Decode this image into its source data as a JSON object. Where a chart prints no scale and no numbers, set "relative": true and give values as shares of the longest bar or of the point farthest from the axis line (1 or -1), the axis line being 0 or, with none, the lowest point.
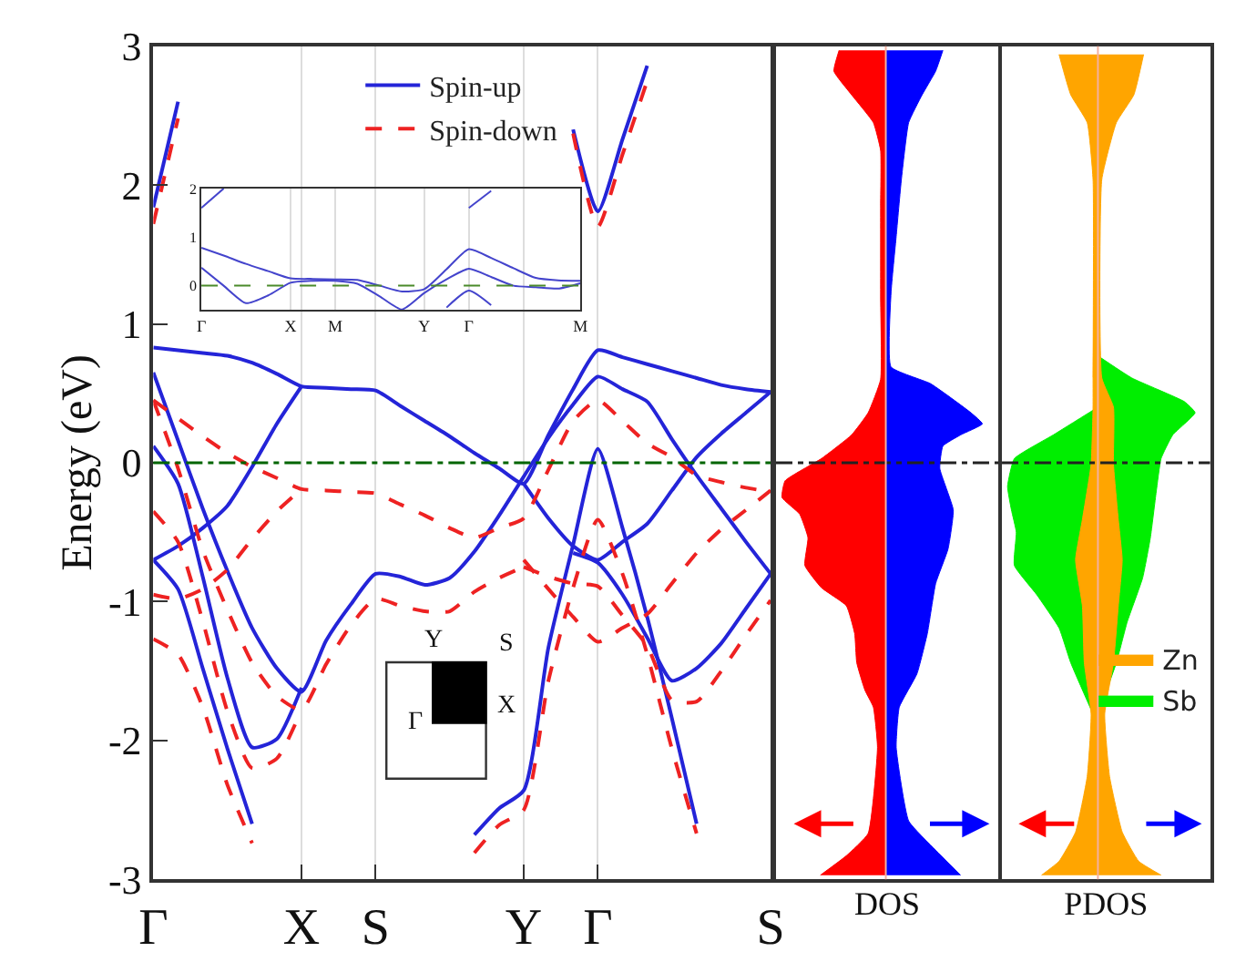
{
  "chart_data": [
    {
      "type": "line",
      "ylabel": "Energy (eV)",
      "ylim": [
        -3,
        3
      ],
      "yticks": [
        -3,
        -2,
        -1,
        0,
        1,
        2,
        3
      ],
      "categories": [
        "Γ",
        null,
        null,
        null,
        null,
        null,
        "X",
        null,
        null,
        "S",
        null,
        null,
        null,
        null,
        null,
        "Y",
        null,
        null,
        "Γ",
        null,
        null,
        null,
        null,
        null,
        null,
        "S"
      ],
      "grid": "x",
      "legend": "top",
      "annotations": [
        "Y",
        "S",
        "Γ",
        "X"
      ],
      "ref_lines": [
        {
          "axis": "y",
          "value": 0,
          "color": "#006400",
          "line_style": "dashdot"
        }
      ],
      "series": [
        {
          "name": "Spin-up",
          "color": "#2424d8",
          "line_style": "solid",
          "values": [
            0.83,
            0.81,
            0.79,
            0.77,
            0.72,
            0.64,
            0.55,
            0.54,
            0.53,
            0.52,
            0.41,
            0.3,
            0.19,
            0.07,
            -0.04,
            -0.15,
            0.2,
            0.53,
            0.81,
            0.76,
            0.71,
            0.66,
            0.61,
            0.56,
            0.53,
            0.51
          ]
        },
        {
          "color": "#2424d8",
          "line_style": "solid",
          "values": [
            1.84,
            2.6,
            null,
            null,
            null,
            null,
            null,
            null,
            null,
            null,
            null,
            null,
            null,
            null,
            null,
            null,
            null,
            null,
            null,
            null,
            null,
            null,
            null,
            null,
            null,
            null
          ]
        },
        {
          "color": "#2424d8",
          "line_style": "solid",
          "values": [
            null,
            null,
            null,
            null,
            null,
            null,
            null,
            null,
            null,
            null,
            null,
            null,
            null,
            null,
            null,
            null,
            null,
            2.4,
            1.81,
            2.33,
            2.86,
            null,
            null,
            null,
            null,
            null
          ]
        },
        {
          "color": "#2424d8",
          "line_style": "solid",
          "values": [
            0.65,
            0.16,
            -0.33,
            -0.78,
            -1.19,
            -1.48,
            -1.65,
            -1.28,
            -1.02,
            -0.8,
            -0.82,
            -0.88,
            -0.83,
            -0.64,
            -0.38,
            -0.1,
            0.18,
            0.42,
            0.62,
            0.53,
            0.44,
            0.17,
            -0.09,
            -0.33,
            -0.57,
            -0.8
          ]
        },
        {
          "color": "#2424d8",
          "line_style": "solid",
          "values": [
            0.12,
            -0.15,
            -0.82,
            -1.55,
            -2.05,
            -1.99,
            -1.62,
            null,
            null,
            null,
            null,
            null,
            null,
            null,
            null,
            null,
            null,
            null,
            null,
            null,
            null,
            null,
            null,
            null,
            null,
            null
          ]
        },
        {
          "color": "#2424d8",
          "line_style": "solid",
          "values": [
            -0.7,
            -0.6,
            -0.47,
            -0.31,
            -0.03,
            0.28,
            0.55,
            null,
            null,
            null,
            null,
            null,
            null,
            null,
            null,
            null,
            null,
            null,
            null,
            null,
            null,
            null,
            null,
            null,
            null,
            null
          ]
        },
        {
          "color": "#2424d8",
          "line_style": "solid",
          "values": [
            -0.7,
            -0.91,
            -1.48,
            -2.06,
            -2.6,
            null,
            null,
            null,
            null,
            null,
            null,
            null,
            null,
            null,
            null,
            null,
            null,
            null,
            null,
            null,
            null,
            null,
            null,
            null,
            null,
            null
          ]
        },
        {
          "color": "#2424d8",
          "line_style": "solid",
          "values": [
            null,
            null,
            null,
            null,
            null,
            null,
            null,
            null,
            null,
            null,
            null,
            null,
            null,
            -2.68,
            -2.49,
            -2.36,
            -1.33,
            -0.59,
            0.1,
            -0.47,
            -1.11,
            -1.84,
            -2.6,
            null,
            null,
            null
          ]
        },
        {
          "color": "#2424d8",
          "line_style": "solid",
          "values": [
            null,
            null,
            null,
            null,
            null,
            null,
            null,
            null,
            null,
            null,
            null,
            null,
            null,
            null,
            null,
            -0.15,
            -0.4,
            -0.6,
            -0.7,
            -0.57,
            -0.44,
            -0.2,
            0.04,
            0.21,
            0.36,
            0.51
          ]
        },
        {
          "color": "#2424d8",
          "line_style": "solid",
          "values": [
            null,
            null,
            null,
            null,
            null,
            null,
            null,
            null,
            null,
            null,
            null,
            null,
            null,
            null,
            null,
            null,
            null,
            -0.65,
            -0.72,
            -0.95,
            -1.26,
            -1.57,
            -1.48,
            -1.3,
            -1.05,
            -0.8
          ]
        },
        {
          "name": "Spin-down",
          "color": "#ee2222",
          "line_style": "dashed",
          "values": [
            0.45,
            0.32,
            0.19,
            0.07,
            -0.03,
            -0.11,
            -0.19,
            -0.2,
            -0.21,
            -0.22,
            -0.3,
            -0.38,
            -0.47,
            -0.54,
            -0.47,
            -0.4,
            -0.05,
            0.3,
            0.45,
            0.3,
            0.14,
            0.04,
            -0.09,
            -0.14,
            -0.18,
            -0.21
          ]
        },
        {
          "color": "#ee2222",
          "line_style": "dashed",
          "values": [
            1.72,
            2.48,
            null,
            null,
            null,
            null,
            null,
            null,
            null,
            null,
            null,
            null,
            null,
            null,
            null,
            null,
            null,
            null,
            null,
            null,
            null,
            null,
            null,
            null,
            null,
            null
          ]
        },
        {
          "color": "#ee2222",
          "line_style": "dashed",
          "values": [
            null,
            null,
            null,
            null,
            null,
            null,
            null,
            null,
            null,
            null,
            null,
            null,
            null,
            null,
            null,
            null,
            null,
            2.37,
            1.7,
            2.22,
            2.75,
            null,
            null,
            null,
            null,
            null
          ]
        },
        {
          "color": "#ee2222",
          "line_style": "dashed",
          "values": [
            -0.95,
            -0.98,
            -0.91,
            -0.77,
            -0.55,
            -0.35,
            -0.19,
            null,
            null,
            null,
            null,
            null,
            null,
            null,
            null,
            null,
            null,
            null,
            null,
            null,
            null,
            null,
            null,
            null,
            null,
            null
          ]
        },
        {
          "color": "#ee2222",
          "line_style": "dashed",
          "values": [
            0.45,
            -0.04,
            -0.63,
            -1.06,
            -1.44,
            -1.68,
            -1.78,
            -1.45,
            -1.17,
            -0.98,
            -1.03,
            -1.07,
            -1.07,
            -0.93,
            -0.83,
            -0.75,
            null,
            null,
            null,
            null,
            null,
            null,
            null,
            null,
            null,
            null
          ]
        },
        {
          "color": "#ee2222",
          "line_style": "dashed",
          "values": [
            -0.35,
            -0.57,
            -1.14,
            -1.79,
            -2.2,
            -2.13,
            -1.78,
            null,
            null,
            null,
            null,
            null,
            null,
            null,
            null,
            null,
            null,
            null,
            null,
            null,
            null,
            null,
            null,
            null,
            null,
            null
          ]
        },
        {
          "color": "#ee2222",
          "line_style": "dashed",
          "values": [
            -1.27,
            -1.38,
            -1.76,
            -2.32,
            -2.74,
            null,
            null,
            null,
            null,
            null,
            null,
            null,
            null,
            null,
            null,
            null,
            null,
            null,
            null,
            null,
            null,
            null,
            null,
            null,
            null,
            null
          ]
        },
        {
          "color": "#ee2222",
          "line_style": "dashed",
          "values": [
            null,
            null,
            null,
            null,
            null,
            null,
            null,
            null,
            null,
            null,
            null,
            null,
            null,
            -2.81,
            -2.61,
            -2.5,
            -1.57,
            -0.9,
            -0.41,
            -0.8,
            -1.38,
            -2.06,
            -2.67,
            null,
            null,
            null
          ]
        },
        {
          "color": "#ee2222",
          "line_style": "dashed",
          "values": [
            null,
            null,
            null,
            null,
            null,
            null,
            null,
            null,
            null,
            null,
            null,
            null,
            null,
            null,
            null,
            -0.7,
            -0.91,
            -1.11,
            -1.29,
            -1.19,
            -1.09,
            -0.87,
            -0.65,
            -0.48,
            -0.34,
            -0.2
          ]
        },
        {
          "color": "#ee2222",
          "line_style": "dashed",
          "values": [
            null,
            null,
            null,
            null,
            null,
            null,
            null,
            null,
            null,
            null,
            null,
            null,
            null,
            null,
            null,
            -0.75,
            -0.82,
            -0.87,
            -0.89,
            -1.1,
            -1.32,
            -1.71,
            -1.72,
            -1.5,
            -1.24,
            -0.99
          ]
        }
      ]
    },
    {
      "type": "line",
      "ylim": [
        -0.5,
        2
      ],
      "yticks": [
        0,
        1,
        2
      ],
      "categories": [
        "Γ",
        null,
        null,
        null,
        "X",
        null,
        "M",
        null,
        null,
        null,
        "Y",
        null,
        "Γ",
        null,
        null,
        null,
        null,
        "M"
      ],
      "grid": "x",
      "ref_lines": [
        {
          "axis": "y",
          "value": 0,
          "color": "#4a8a2a",
          "line_style": "dashed"
        }
      ],
      "series": [
        {
          "color": "#4444cc",
          "values": [
            0.78,
            0.62,
            0.45,
            0.3,
            0.15,
            0.14,
            0.13,
            0.12,
            0.0,
            -0.12,
            -0.07,
            0.34,
            0.75,
            0.57,
            0.36,
            0.16,
            0.11,
            0.1
          ]
        },
        {
          "color": "#4444cc",
          "values": [
            0.37,
            0.0,
            -0.36,
            -0.2,
            0.06,
            0.1,
            0.1,
            0.04,
            -0.22,
            -0.49,
            -0.15,
            0.13,
            0.35,
            0.18,
            0.0,
            -0.03,
            -0.06,
            0.05
          ]
        },
        {
          "color": "#4444cc",
          "values": [
            null,
            null,
            null,
            null,
            null,
            null,
            null,
            null,
            null,
            null,
            null,
            null,
            1.6,
            1.95,
            null,
            null,
            null,
            null
          ]
        },
        {
          "color": "#4444cc",
          "values": [
            1.6,
            2.0,
            null,
            null,
            null,
            null,
            null,
            null,
            null,
            null,
            null,
            null,
            null,
            null,
            null,
            null,
            null,
            null
          ]
        },
        {
          "color": "#4444cc",
          "values": [
            null,
            null,
            null,
            null,
            null,
            null,
            null,
            null,
            null,
            null,
            null,
            -0.45,
            -0.1,
            -0.4,
            null,
            null,
            null,
            null
          ]
        }
      ]
    },
    {
      "type": "area",
      "orientation": "horizontal",
      "relative": true,
      "xlabel": "DOS",
      "ylim": [
        -3,
        3
      ],
      "tick_labels": false,
      "ref_lines": [
        {
          "axis": "y",
          "value": 0,
          "color": "#222222",
          "line_style": "dashdot"
        },
        {
          "axis": "x",
          "value": 0,
          "color": "#f4b0a0",
          "line_style": "solid"
        }
      ],
      "series": [
        {
          "color": "#ff0000",
          "x": [
            2.97,
            2.82,
            2.65,
            2.45,
            2.25,
            1.85,
            1.2,
            0.6,
            0.36,
            0.2,
            0.03,
            -0.13,
            -0.25,
            -0.37,
            -0.54,
            -0.74,
            -0.9,
            -1.03,
            -1.23,
            -1.44,
            -1.64,
            -1.76,
            -2.05,
            -2.67,
            -2.83,
            -2.97
          ],
          "values": [
            -0.45,
            -0.5,
            -0.33,
            -0.12,
            -0.05,
            -0.05,
            -0.05,
            -0.05,
            -0.17,
            -0.33,
            -0.62,
            -0.97,
            -1,
            -0.83,
            -0.75,
            -0.78,
            -0.62,
            -0.38,
            -0.3,
            -0.28,
            -0.2,
            -0.12,
            -0.08,
            -0.17,
            -0.38,
            -0.63
          ]
        },
        {
          "color": "#0000ff",
          "x": [
            2.97,
            2.82,
            2.65,
            2.45,
            2.04,
            1.63,
            1.22,
            0.69,
            0.57,
            0.36,
            0.28,
            0.2,
            0.12,
            -0.04,
            -0.34,
            -0.62,
            -0.87,
            -1.23,
            -1.52,
            -1.76,
            -2.05,
            -2.58,
            -2.79,
            -2.97
          ],
          "values": [
            0.55,
            0.48,
            0.35,
            0.22,
            0.15,
            0.1,
            0.05,
            0.05,
            0.43,
            0.82,
            0.93,
            0.72,
            0.55,
            0.52,
            0.65,
            0.6,
            0.48,
            0.4,
            0.3,
            0.13,
            0.1,
            0.22,
            0.48,
            0.72
          ]
        }
      ]
    },
    {
      "type": "area",
      "orientation": "horizontal",
      "relative": true,
      "xlabel": "PDOS",
      "ylim": [
        -3,
        3
      ],
      "tick_labels": false,
      "legend": "bottom right",
      "ref_lines": [
        {
          "axis": "y",
          "value": 0,
          "color": "#222222",
          "line_style": "dashdot"
        },
        {
          "axis": "x",
          "value": 0,
          "color": "#f4b0a0",
          "line_style": "solid"
        }
      ],
      "series": [
        {
          "name": "Sb",
          "color": "#00ee00",
          "x": [
            0.77,
            0.61,
            0.44,
            0.36,
            0.2,
            0.03,
            -0.21,
            -0.54,
            -0.83,
            -1.15,
            -1.44,
            -1.81
          ],
          "values": [
            0,
            0.35,
            0.89,
            1,
            0.77,
            0.65,
            0.6,
            0.54,
            0.46,
            0.3,
            0.19,
            0
          ]
        },
        {
          "color": "#00ee00",
          "x": [
            0.4,
            0.2,
            0.03,
            -0.17,
            -0.34,
            -0.5,
            -0.74,
            -0.95,
            -1.19,
            -1.44,
            -1.81
          ],
          "values": [
            0,
            -0.46,
            -0.86,
            -0.93,
            -0.89,
            -0.84,
            -0.86,
            -0.63,
            -0.4,
            -0.28,
            -0.05
          ]
        },
        {
          "name": "Zn",
          "color": "#ffa500",
          "x": [
            2.94,
            2.65,
            2.45,
            2.04,
            0.61,
            0.4,
            -0.01,
            -0.41,
            -0.7,
            -1.03,
            -1.44,
            -1.81,
            -2.26,
            -2.66,
            -2.87,
            -2.97
          ],
          "values": [
            0.47,
            0.37,
            0.19,
            0.04,
            0.04,
            0.16,
            0.16,
            0.21,
            0.25,
            0.21,
            0.16,
            0.07,
            0.12,
            0.25,
            0.42,
            0.65
          ]
        },
        {
          "color": "#ffa500",
          "x": [
            2.94,
            2.65,
            2.45,
            2.04,
            0.61,
            0.4,
            -0.01,
            -0.41,
            -0.7,
            -1.03,
            -1.44,
            -1.81,
            -2.26,
            -2.66,
            -2.87,
            -2.97
          ],
          "values": [
            -0.4,
            -0.28,
            -0.11,
            -0.05,
            -0.05,
            -0.05,
            -0.07,
            -0.16,
            -0.23,
            -0.16,
            -0.14,
            -0.07,
            -0.11,
            -0.23,
            -0.4,
            -0.58
          ]
        }
      ]
    }
  ]
}
